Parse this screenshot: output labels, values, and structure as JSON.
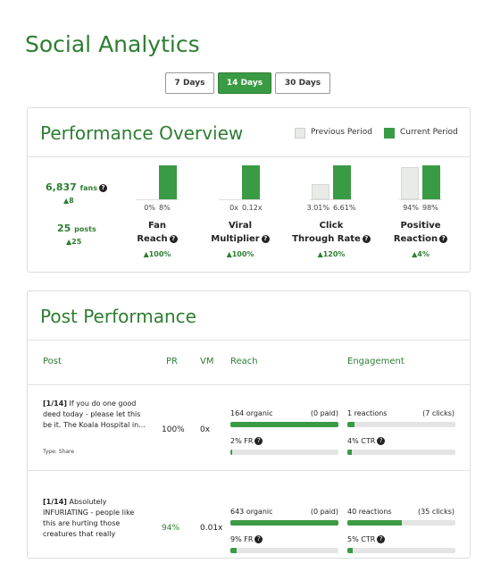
{
  "header": {
    "title": "Social Analytics",
    "ranges": [
      "7 Days",
      "14 Days",
      "30 Days"
    ],
    "active_range": 1
  },
  "overview": {
    "title": "Performance Overview",
    "legend": [
      "Previous Period",
      "Current Period"
    ],
    "fans": "6,837",
    "fans_unit": "fans",
    "fans_change": "▲8",
    "posts": "25",
    "posts_unit": "posts",
    "posts_change": "▲25",
    "metrics": [
      {
        "name": [
          "Fan",
          "Reach"
        ],
        "previous": 0,
        "current": 8,
        "previous_label": "0%",
        "current_label": "8%",
        "change": "▲100%"
      },
      {
        "name": [
          "Viral",
          "Multiplier"
        ],
        "previous": 0,
        "current": 0.12,
        "previous_label": "0x",
        "current_label": "0.12x",
        "change": "▲100%"
      },
      {
        "name": [
          "Click",
          "Through Rate"
        ],
        "previous": 3.01,
        "current": 6.61,
        "previous_label": "3.01%",
        "current_label": "6.61%",
        "change": "▲120%"
      },
      {
        "name": [
          "Positive",
          "Reaction"
        ],
        "previous": 94,
        "current": 98,
        "previous_label": "94%",
        "current_label": "98%",
        "change": "▲4%"
      }
    ]
  },
  "posts": {
    "title": "Post Performance",
    "columns": [
      "Post",
      "PR",
      "VM",
      "Reach",
      "Engagement"
    ],
    "rows": [
      {
        "date": "[1/14]",
        "text": "If you do one good deed today - please let this be it. The Koala Hospital in...",
        "type": "Type: Share",
        "pr": "100%",
        "vm": "0x",
        "organic": "164 organic",
        "paid": "(0 paid)",
        "fr": "2% FR",
        "reactions": "1 reactions",
        "clicks": "(7 clicks)",
        "ctr": "4% CTR"
      },
      {
        "date": "[1/14]",
        "text": "Absolutely INFURIATING - people like this are hurting those creatures that really",
        "type": "",
        "pr": "94%",
        "vm": "0.01x",
        "organic": "643 organic",
        "paid": "(0 paid)",
        "fr": "9% FR",
        "reactions": "40 reactions",
        "clicks": "(35 clicks)",
        "ctr": "5% CTR"
      }
    ]
  }
}
